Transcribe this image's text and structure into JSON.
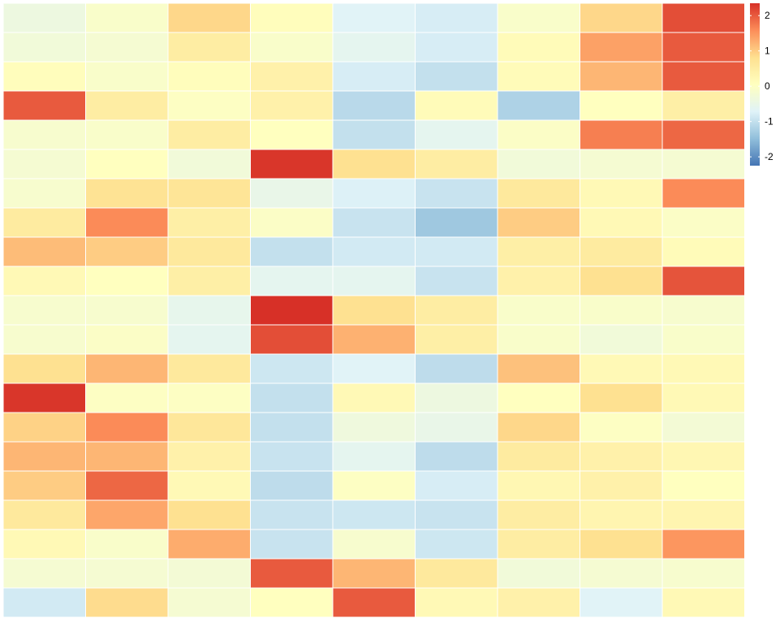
{
  "chart_data": {
    "type": "heatmap",
    "title": "",
    "xlabel": "",
    "ylabel": "",
    "rows": 21,
    "cols": 9,
    "values": [
      [
        -0.4,
        -0.1,
        0.9,
        0.1,
        -0.7,
        -0.8,
        -0.1,
        0.9,
        2.1
      ],
      [
        -0.3,
        -0.2,
        0.5,
        -0.1,
        -0.6,
        -0.8,
        0.15,
        1.4,
        2.0
      ],
      [
        0.1,
        -0.1,
        0.1,
        0.4,
        -0.8,
        -1.0,
        0.15,
        1.2,
        2.0
      ],
      [
        2.0,
        0.5,
        0.0,
        0.4,
        -1.1,
        0.15,
        -1.2,
        0.05,
        0.45
      ],
      [
        -0.15,
        -0.1,
        0.5,
        0.05,
        -1.0,
        -0.6,
        -0.05,
        1.7,
        1.9
      ],
      [
        -0.2,
        0.05,
        -0.3,
        2.3,
        0.8,
        0.5,
        -0.3,
        -0.2,
        -0.2
      ],
      [
        -0.15,
        0.75,
        0.7,
        -0.5,
        -0.75,
        -0.95,
        0.6,
        0.2,
        1.6
      ],
      [
        0.55,
        1.6,
        0.45,
        -0.05,
        -0.95,
        -1.35,
        1.0,
        0.2,
        -0.05
      ],
      [
        1.15,
        1.0,
        0.6,
        -1.0,
        -0.85,
        -0.85,
        0.45,
        0.55,
        0.15
      ],
      [
        0.2,
        0.05,
        0.45,
        -0.6,
        -0.6,
        -0.95,
        0.4,
        0.8,
        2.05
      ],
      [
        -0.15,
        -0.15,
        -0.55,
        2.35,
        0.8,
        0.5,
        -0.1,
        -0.1,
        -0.15
      ],
      [
        -0.15,
        -0.05,
        -0.6,
        2.1,
        1.25,
        0.45,
        -0.1,
        -0.3,
        -0.1
      ],
      [
        0.8,
        1.2,
        0.6,
        -0.9,
        -0.7,
        -1.05,
        1.1,
        0.2,
        0.2
      ],
      [
        2.3,
        0.0,
        0.0,
        -1.0,
        0.2,
        -0.4,
        0.05,
        0.8,
        0.2
      ],
      [
        0.95,
        1.6,
        0.65,
        -1.0,
        -0.35,
        -0.5,
        0.9,
        0.0,
        -0.25
      ],
      [
        1.2,
        1.2,
        0.4,
        -0.95,
        -0.6,
        -1.05,
        0.55,
        0.4,
        0.25
      ],
      [
        1.0,
        1.9,
        0.2,
        -1.05,
        0.0,
        -0.8,
        0.25,
        0.4,
        0.05
      ],
      [
        0.6,
        1.35,
        0.8,
        -0.95,
        -0.9,
        -0.95,
        0.5,
        0.3,
        0.3
      ],
      [
        0.2,
        -0.1,
        1.3,
        -0.95,
        -0.15,
        -0.9,
        0.5,
        0.8,
        1.5
      ],
      [
        -0.2,
        -0.2,
        -0.25,
        2.0,
        1.2,
        0.6,
        -0.3,
        -0.2,
        -0.15
      ],
      [
        -0.85,
        0.85,
        -0.2,
        0.05,
        2.0,
        0.2,
        0.4,
        -0.7,
        0.2
      ]
    ],
    "colorbar": {
      "ticks": [
        2,
        1,
        0,
        -1,
        -2
      ],
      "tick_labels": [
        "2",
        "1",
        "0",
        "-1",
        "-2"
      ],
      "range": [
        -2.25,
        2.35
      ],
      "palette": [
        "#4575B4",
        "#91BFDB",
        "#E0F3F8",
        "#FFFFBF",
        "#FEE090",
        "#FC8D59",
        "#D73027"
      ]
    },
    "legend": "right",
    "grid": true
  }
}
